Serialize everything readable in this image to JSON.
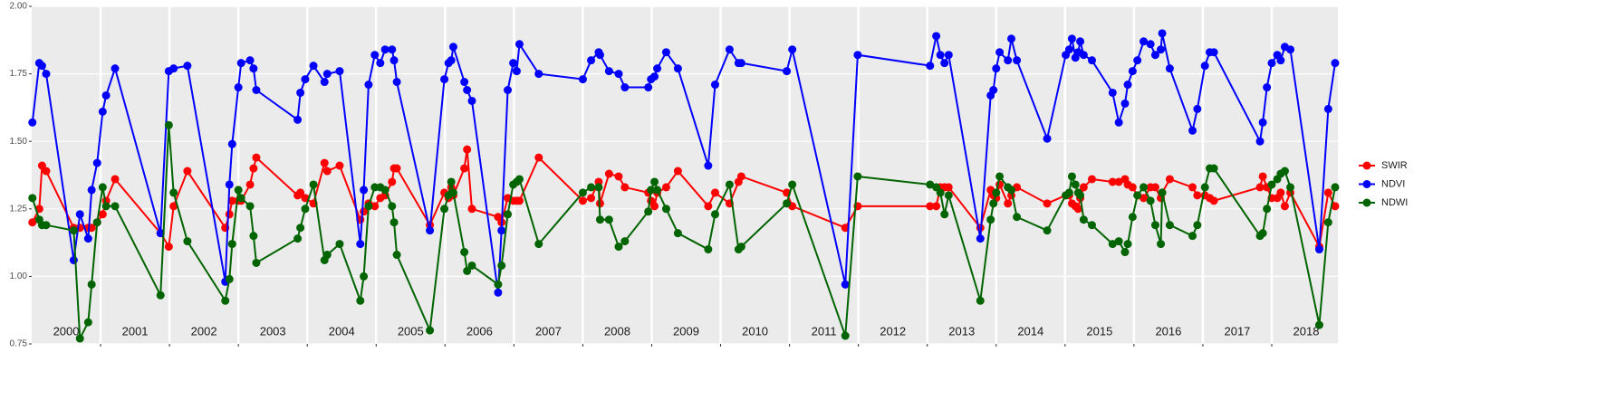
{
  "chart_data": {
    "type": "line",
    "x": [
      2000.01,
      2000.11,
      2000.15,
      2000.21,
      2000.61,
      2000.7,
      2000.82,
      2000.87,
      2000.95,
      2001.03,
      2001.08,
      2001.21,
      2001.87,
      2001.99,
      2002.06,
      2002.26,
      2002.81,
      2002.87,
      2002.91,
      2003.0,
      2003.04,
      2003.17,
      2003.22,
      2003.26,
      2003.86,
      2003.9,
      2003.97,
      2004.09,
      2004.25,
      2004.29,
      2004.47,
      2004.77,
      2004.82,
      2004.89,
      2004.98,
      2005.06,
      2005.13,
      2005.23,
      2005.26,
      2005.3,
      2005.78,
      2005.99,
      2006.05,
      2006.09,
      2006.12,
      2006.28,
      2006.32,
      2006.39,
      2006.77,
      2006.82,
      2006.91,
      2006.99,
      2007.04,
      2007.08,
      2007.36,
      2008.0,
      2008.12,
      2008.23,
      2008.25,
      2008.38,
      2008.52,
      2008.61,
      2008.95,
      2008.99,
      2009.04,
      2009.08,
      2009.21,
      2009.38,
      2009.82,
      2009.92,
      2010.13,
      2010.26,
      2010.3,
      2010.96,
      2011.04,
      2011.81,
      2011.99,
      2013.04,
      2013.13,
      2013.19,
      2013.25,
      2013.31,
      2013.77,
      2013.92,
      2013.96,
      2014.0,
      2014.05,
      2014.17,
      2014.22,
      2014.3,
      2014.74,
      2015.01,
      2015.06,
      2015.1,
      2015.15,
      2015.19,
      2015.22,
      2015.27,
      2015.39,
      2015.69,
      2015.78,
      2015.87,
      2015.91,
      2015.98,
      2016.05,
      2016.14,
      2016.24,
      2016.31,
      2016.39,
      2016.41,
      2016.52,
      2016.85,
      2016.92,
      2017.03,
      2017.1,
      2017.16,
      2017.83,
      2017.87,
      2017.93,
      2018.0,
      2018.08,
      2018.13,
      2018.19,
      2018.27,
      2018.69,
      2018.82,
      2018.92
    ],
    "series": [
      {
        "name": "SWIR",
        "color": "#ff0000",
        "values": [
          1.2,
          1.25,
          1.41,
          1.39,
          1.18,
          1.18,
          1.18,
          1.18,
          1.2,
          1.23,
          1.28,
          1.36,
          1.16,
          1.11,
          1.26,
          1.39,
          1.18,
          1.23,
          1.28,
          1.28,
          1.28,
          1.34,
          1.4,
          1.44,
          1.3,
          1.31,
          1.29,
          1.27,
          1.42,
          1.39,
          1.41,
          1.21,
          1.24,
          1.27,
          1.26,
          1.29,
          1.3,
          1.35,
          1.4,
          1.4,
          1.19,
          1.31,
          1.29,
          1.33,
          1.3,
          1.4,
          1.47,
          1.25,
          1.22,
          1.2,
          1.29,
          1.28,
          1.28,
          1.28,
          1.44,
          1.28,
          1.29,
          1.35,
          1.27,
          1.38,
          1.37,
          1.33,
          1.31,
          1.28,
          1.26,
          1.31,
          1.33,
          1.39,
          1.26,
          1.31,
          1.27,
          1.35,
          1.37,
          1.31,
          1.26,
          1.18,
          1.26,
          1.26,
          1.26,
          1.33,
          1.33,
          1.33,
          1.18,
          1.32,
          1.3,
          1.29,
          1.34,
          1.27,
          1.3,
          1.33,
          1.27,
          1.3,
          1.3,
          1.27,
          1.26,
          1.25,
          1.29,
          1.33,
          1.36,
          1.35,
          1.35,
          1.36,
          1.34,
          1.33,
          1.3,
          1.29,
          1.33,
          1.33,
          1.29,
          1.31,
          1.36,
          1.33,
          1.3,
          1.3,
          1.29,
          1.28,
          1.33,
          1.37,
          1.33,
          1.29,
          1.29,
          1.31,
          1.26,
          1.31,
          1.11,
          1.31,
          1.26
        ]
      },
      {
        "name": "NDVI",
        "color": "#0000ff",
        "values": [
          1.57,
          1.79,
          1.78,
          1.75,
          1.06,
          1.23,
          1.14,
          1.32,
          1.42,
          1.61,
          1.67,
          1.77,
          1.16,
          1.76,
          1.77,
          1.78,
          0.98,
          1.34,
          1.49,
          1.7,
          1.79,
          1.8,
          1.77,
          1.69,
          1.58,
          1.68,
          1.73,
          1.78,
          1.72,
          1.75,
          1.76,
          1.12,
          1.32,
          1.71,
          1.82,
          1.79,
          1.84,
          1.84,
          1.8,
          1.72,
          1.17,
          1.73,
          1.79,
          1.8,
          1.85,
          1.72,
          1.69,
          1.65,
          0.94,
          1.17,
          1.69,
          1.79,
          1.76,
          1.86,
          1.75,
          1.73,
          1.8,
          1.83,
          1.82,
          1.76,
          1.75,
          1.7,
          1.7,
          1.73,
          1.74,
          1.77,
          1.83,
          1.77,
          1.41,
          1.71,
          1.84,
          1.79,
          1.79,
          1.76,
          1.84,
          0.97,
          1.82,
          1.78,
          1.89,
          1.82,
          1.79,
          1.82,
          1.14,
          1.67,
          1.69,
          1.77,
          1.83,
          1.8,
          1.88,
          1.8,
          1.51,
          1.82,
          1.84,
          1.88,
          1.81,
          1.83,
          1.87,
          1.82,
          1.8,
          1.68,
          1.57,
          1.64,
          1.71,
          1.76,
          1.8,
          1.87,
          1.86,
          1.82,
          1.84,
          1.9,
          1.77,
          1.54,
          1.62,
          1.78,
          1.83,
          1.83,
          1.5,
          1.57,
          1.7,
          1.79,
          1.82,
          1.8,
          1.85,
          1.84,
          1.1,
          1.62,
          1.79
        ]
      },
      {
        "name": "NDWI",
        "color": "#006400",
        "values": [
          1.29,
          1.21,
          1.19,
          1.19,
          1.17,
          0.77,
          0.83,
          0.97,
          1.2,
          1.33,
          1.26,
          1.26,
          0.93,
          1.56,
          1.31,
          1.13,
          0.91,
          0.99,
          1.12,
          1.32,
          1.29,
          1.26,
          1.15,
          1.05,
          1.14,
          1.18,
          1.25,
          1.34,
          1.06,
          1.08,
          1.12,
          0.91,
          1.0,
          1.26,
          1.33,
          1.33,
          1.32,
          1.26,
          1.2,
          1.08,
          0.8,
          1.25,
          1.3,
          1.35,
          1.31,
          1.09,
          1.02,
          1.04,
          0.97,
          1.04,
          1.23,
          1.34,
          1.35,
          1.36,
          1.12,
          1.31,
          1.33,
          1.33,
          1.21,
          1.21,
          1.11,
          1.13,
          1.24,
          1.32,
          1.35,
          1.32,
          1.25,
          1.16,
          1.1,
          1.23,
          1.34,
          1.1,
          1.11,
          1.27,
          1.34,
          0.78,
          1.37,
          1.34,
          1.33,
          1.31,
          1.23,
          1.3,
          0.91,
          1.21,
          1.27,
          1.31,
          1.37,
          1.33,
          1.32,
          1.22,
          1.17,
          1.3,
          1.31,
          1.37,
          1.34,
          1.31,
          1.3,
          1.21,
          1.19,
          1.12,
          1.13,
          1.09,
          1.12,
          1.22,
          1.3,
          1.33,
          1.28,
          1.19,
          1.12,
          1.31,
          1.19,
          1.15,
          1.19,
          1.33,
          1.4,
          1.4,
          1.15,
          1.16,
          1.25,
          1.34,
          1.36,
          1.38,
          1.39,
          1.33,
          0.82,
          1.2,
          1.33
        ]
      }
    ],
    "xlim": [
      2000,
      2018.96
    ],
    "ylim": [
      0.75,
      2.0
    ],
    "yticks": [
      {
        "value": 0.75,
        "label": "0.75"
      },
      {
        "value": 1,
        "label": "1.00"
      },
      {
        "value": 1.25,
        "label": "1.25"
      },
      {
        "value": 1.5,
        "label": "1.50"
      },
      {
        "value": 1.75,
        "label": "1.75"
      },
      {
        "value": 2,
        "label": "2.00"
      }
    ],
    "vlines": [
      2001,
      2002,
      2003,
      2004,
      2005,
      2006,
      2007,
      2008,
      2009,
      2010,
      2011,
      2012,
      2013,
      2014,
      2015,
      2016,
      2017,
      2018
    ],
    "annotations": [
      {
        "x": 2000.5,
        "text": "2000"
      },
      {
        "x": 2001.5,
        "text": "2001"
      },
      {
        "x": 2002.5,
        "text": "2002"
      },
      {
        "x": 2003.5,
        "text": "2003"
      },
      {
        "x": 2004.5,
        "text": "2004"
      },
      {
        "x": 2005.5,
        "text": "2005"
      },
      {
        "x": 2006.5,
        "text": "2006"
      },
      {
        "x": 2007.5,
        "text": "2007"
      },
      {
        "x": 2008.5,
        "text": "2008"
      },
      {
        "x": 2009.5,
        "text": "2009"
      },
      {
        "x": 2010.5,
        "text": "2010"
      },
      {
        "x": 2011.5,
        "text": "2011"
      },
      {
        "x": 2012.5,
        "text": "2012"
      },
      {
        "x": 2013.5,
        "text": "2013"
      },
      {
        "x": 2014.5,
        "text": "2014"
      },
      {
        "x": 2015.5,
        "text": "2015"
      },
      {
        "x": 2016.5,
        "text": "2016"
      },
      {
        "x": 2017.5,
        "text": "2017"
      },
      {
        "x": 2018.5,
        "text": "2018"
      }
    ],
    "grid": true,
    "legend": "right"
  }
}
